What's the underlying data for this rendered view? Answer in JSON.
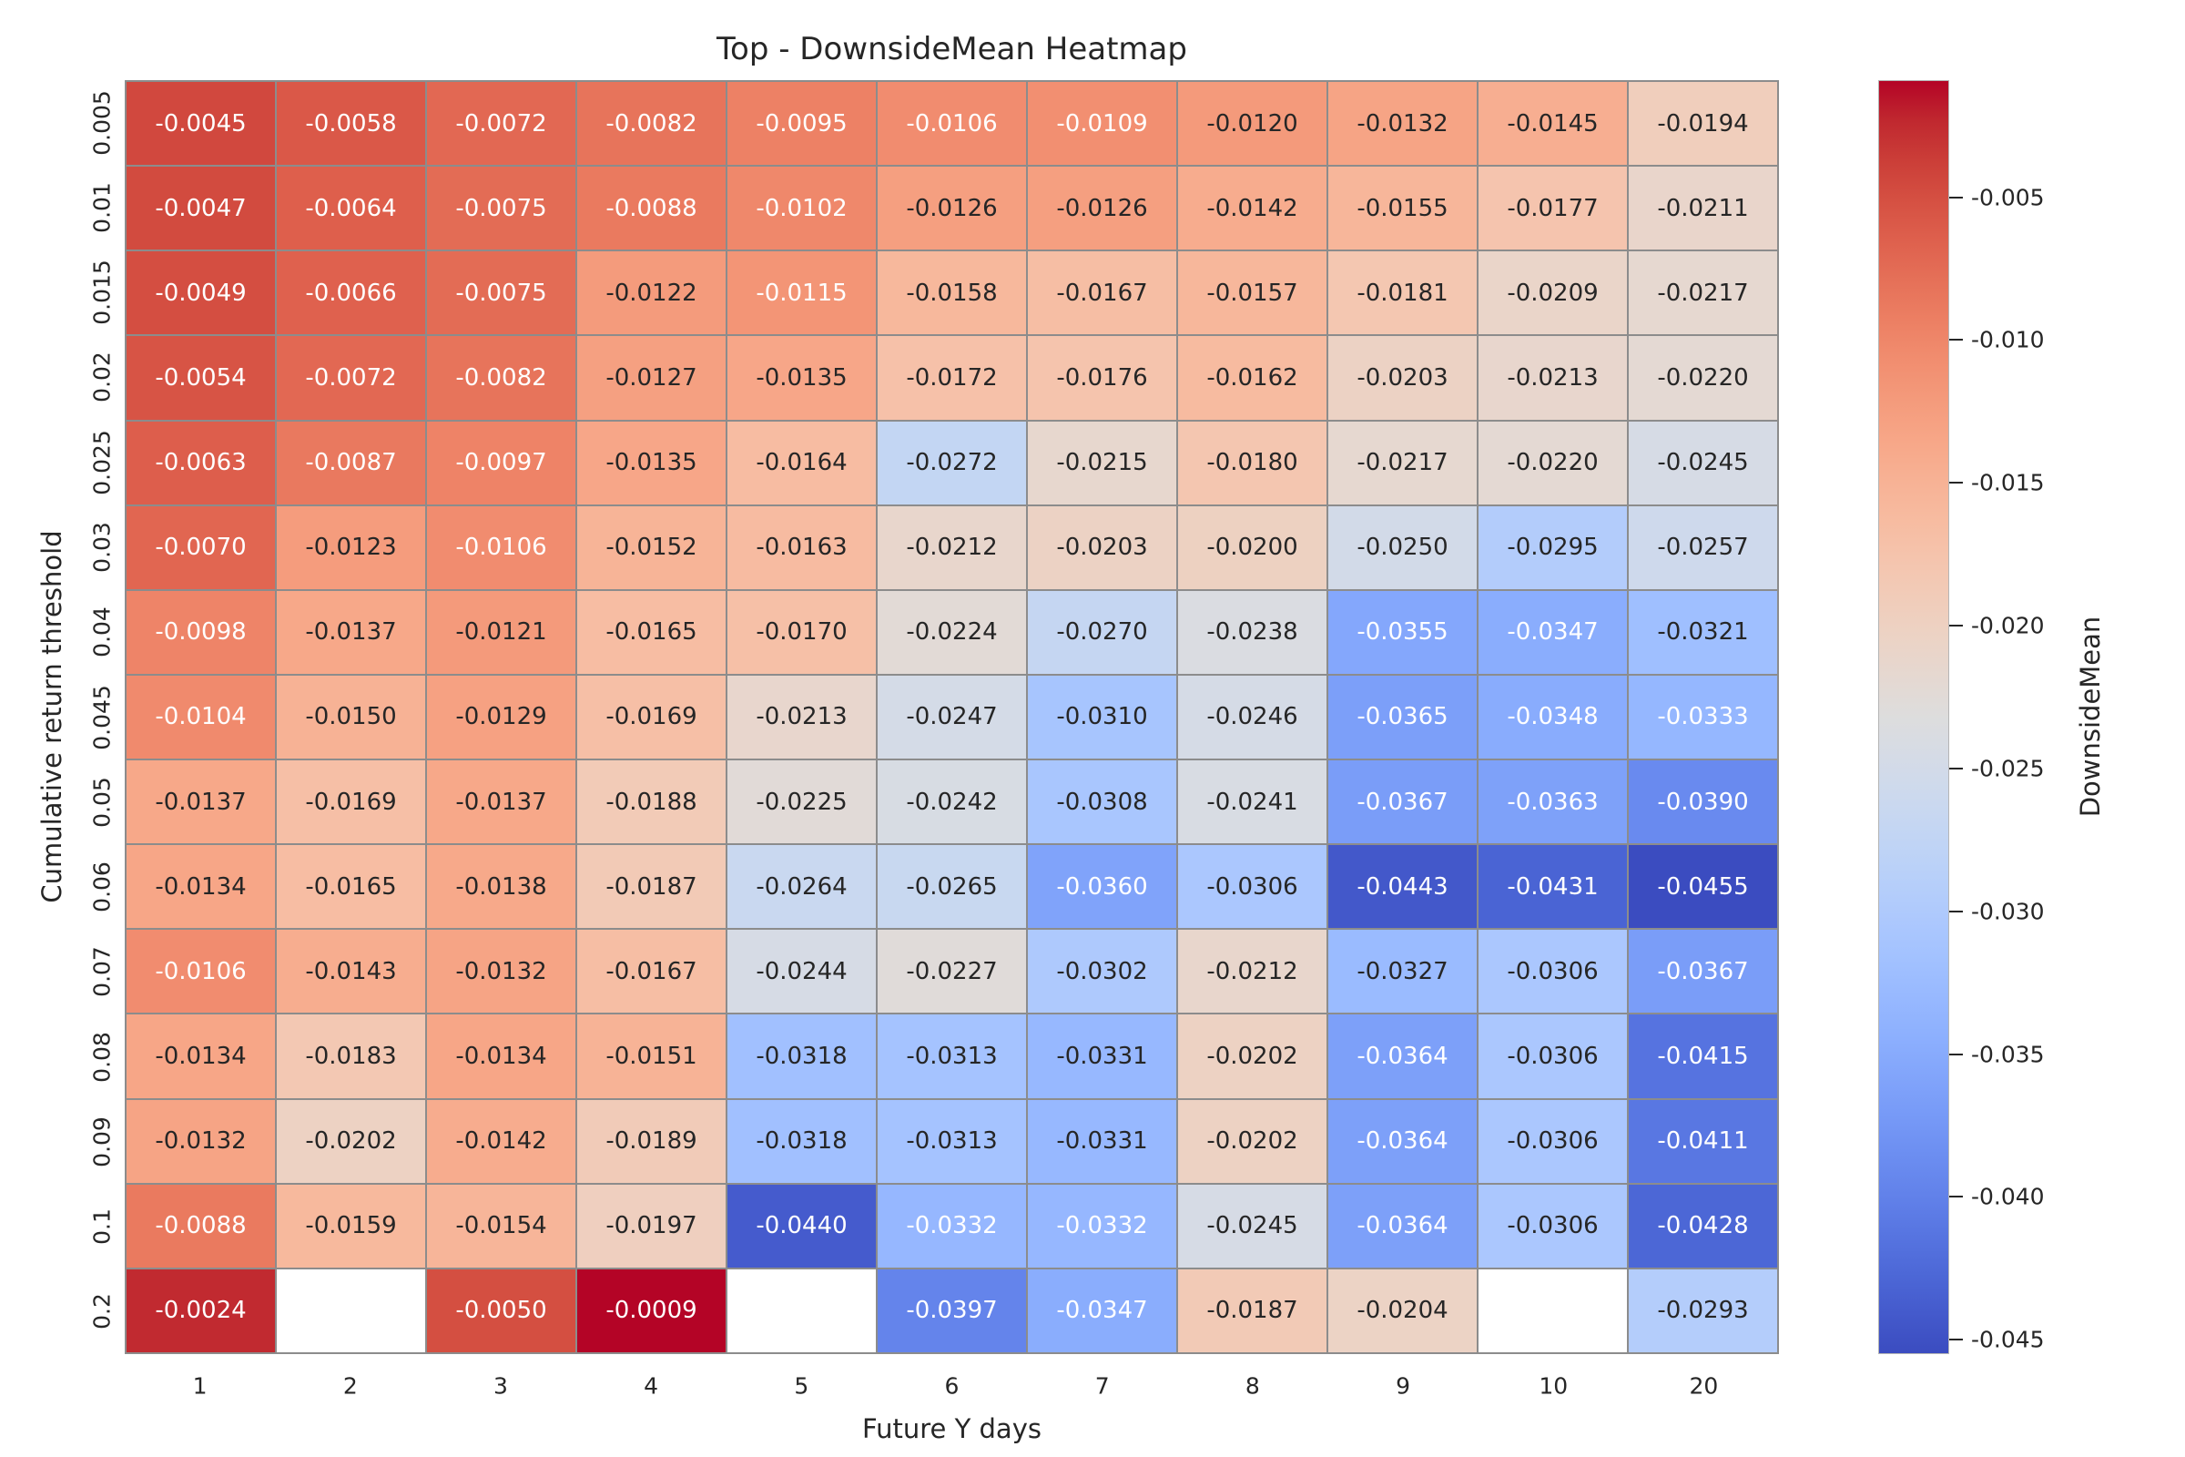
{
  "chart_data": {
    "type": "heatmap",
    "title": "Top - DownsideMean Heatmap",
    "xlabel": "Future Y days",
    "ylabel": "Cumulative return threshold",
    "colormap": "coolwarm",
    "vmin": -0.0455,
    "vmax": -0.0009,
    "annotation_format": ".4f",
    "grid_line_color": "#8c8c8c",
    "x_tick_labels": [
      "1",
      "2",
      "3",
      "4",
      "5",
      "6",
      "7",
      "8",
      "9",
      "10",
      "20"
    ],
    "y_tick_labels": [
      "0.005",
      "0.01",
      "0.015",
      "0.02",
      "0.025",
      "0.03",
      "0.04",
      "0.045",
      "0.05",
      "0.06",
      "0.07",
      "0.08",
      "0.09",
      "0.1",
      "0.2"
    ],
    "values": [
      [
        -0.0045,
        -0.0058,
        -0.0072,
        -0.0082,
        -0.0095,
        -0.0106,
        -0.0109,
        -0.012,
        -0.0132,
        -0.0145,
        -0.0194
      ],
      [
        -0.0047,
        -0.0064,
        -0.0075,
        -0.0088,
        -0.0102,
        -0.0126,
        -0.0126,
        -0.0142,
        -0.0155,
        -0.0177,
        -0.0211
      ],
      [
        -0.0049,
        -0.0066,
        -0.0075,
        -0.0122,
        -0.0115,
        -0.0158,
        -0.0167,
        -0.0157,
        -0.0181,
        -0.0209,
        -0.0217
      ],
      [
        -0.0054,
        -0.0072,
        -0.0082,
        -0.0127,
        -0.0135,
        -0.0172,
        -0.0176,
        -0.0162,
        -0.0203,
        -0.0213,
        -0.022
      ],
      [
        -0.0063,
        -0.0087,
        -0.0097,
        -0.0135,
        -0.0164,
        -0.0272,
        -0.0215,
        -0.018,
        -0.0217,
        -0.022,
        -0.0245
      ],
      [
        -0.007,
        -0.0123,
        -0.0106,
        -0.0152,
        -0.0163,
        -0.0212,
        -0.0203,
        -0.02,
        -0.025,
        -0.0295,
        -0.0257
      ],
      [
        -0.0098,
        -0.0137,
        -0.0121,
        -0.0165,
        -0.017,
        -0.0224,
        -0.027,
        -0.0238,
        -0.0355,
        -0.0347,
        -0.0321
      ],
      [
        -0.0104,
        -0.015,
        -0.0129,
        -0.0169,
        -0.0213,
        -0.0247,
        -0.031,
        -0.0246,
        -0.0365,
        -0.0348,
        -0.0333
      ],
      [
        -0.0137,
        -0.0169,
        -0.0137,
        -0.0188,
        -0.0225,
        -0.0242,
        -0.0308,
        -0.0241,
        -0.0367,
        -0.0363,
        -0.039
      ],
      [
        -0.0134,
        -0.0165,
        -0.0138,
        -0.0187,
        -0.0264,
        -0.0265,
        -0.036,
        -0.0306,
        -0.0443,
        -0.0431,
        -0.0455
      ],
      [
        -0.0106,
        -0.0143,
        -0.0132,
        -0.0167,
        -0.0244,
        -0.0227,
        -0.0302,
        -0.0212,
        -0.0327,
        -0.0306,
        -0.0367
      ],
      [
        -0.0134,
        -0.0183,
        -0.0134,
        -0.0151,
        -0.0318,
        -0.0313,
        -0.0331,
        -0.0202,
        -0.0364,
        -0.0306,
        -0.0415
      ],
      [
        -0.0132,
        -0.0202,
        -0.0142,
        -0.0189,
        -0.0318,
        -0.0313,
        -0.0331,
        -0.0202,
        -0.0364,
        -0.0306,
        -0.0411
      ],
      [
        -0.0088,
        -0.0159,
        -0.0154,
        -0.0197,
        -0.044,
        -0.0332,
        -0.0332,
        -0.0245,
        -0.0364,
        -0.0306,
        -0.0428
      ],
      [
        -0.0024,
        null,
        -0.005,
        -0.0009,
        null,
        -0.0397,
        -0.0347,
        -0.0187,
        -0.0204,
        null,
        -0.0293
      ]
    ],
    "colorbar": {
      "label": "DownsideMean",
      "ticks": [
        {
          "value": -0.005,
          "label": "-0.005"
        },
        {
          "value": -0.01,
          "label": "-0.010"
        },
        {
          "value": -0.015,
          "label": "-0.015"
        },
        {
          "value": -0.02,
          "label": "-0.020"
        },
        {
          "value": -0.025,
          "label": "-0.025"
        },
        {
          "value": -0.03,
          "label": "-0.030"
        },
        {
          "value": -0.035,
          "label": "-0.035"
        },
        {
          "value": -0.04,
          "label": "-0.040"
        },
        {
          "value": -0.045,
          "label": "-0.045"
        }
      ]
    }
  }
}
